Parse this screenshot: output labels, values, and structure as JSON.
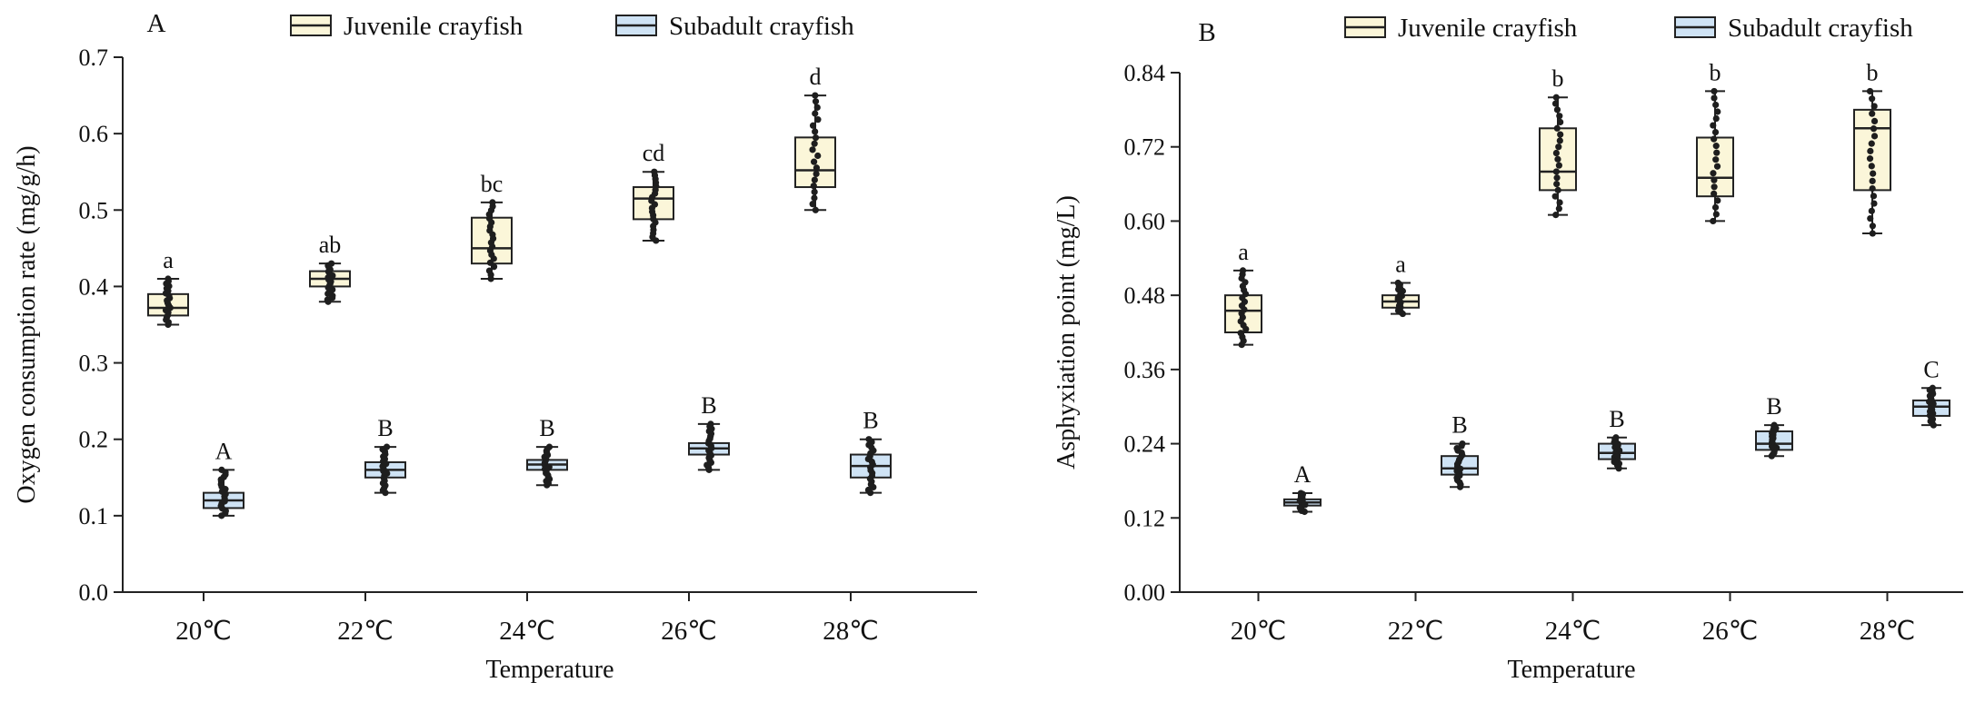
{
  "chart_data": [
    {
      "type": "box",
      "panel_label": "A",
      "xlabel": "Temperature",
      "ylabel": "Oxygen consumption rate (mg/g/h)",
      "ylim": [
        0,
        0.7
      ],
      "yticks": [
        0.0,
        0.1,
        0.2,
        0.3,
        0.4,
        0.5,
        0.6,
        0.7
      ],
      "ytick_labels": [
        "0.0",
        "0.1",
        "0.2",
        "0.3",
        "0.4",
        "0.5",
        "0.6",
        "0.7"
      ],
      "categories": [
        "20℃",
        "22℃",
        "24℃",
        "26℃",
        "28℃"
      ],
      "legend": [
        "Juvenile crayfish",
        "Subadult crayfish"
      ],
      "series": [
        {
          "name": "Juvenile crayfish",
          "color": "#fbf6d9",
          "boxes": [
            {
              "min": 0.35,
              "q1": 0.362,
              "median": 0.372,
              "q3": 0.39,
              "max": 0.41,
              "label": "a"
            },
            {
              "min": 0.38,
              "q1": 0.4,
              "median": 0.41,
              "q3": 0.42,
              "max": 0.43,
              "label": "ab"
            },
            {
              "min": 0.41,
              "q1": 0.43,
              "median": 0.45,
              "q3": 0.49,
              "max": 0.51,
              "label": "bc"
            },
            {
              "min": 0.46,
              "q1": 0.488,
              "median": 0.515,
              "q3": 0.53,
              "max": 0.55,
              "label": "cd"
            },
            {
              "min": 0.5,
              "q1": 0.53,
              "median": 0.552,
              "q3": 0.595,
              "max": 0.65,
              "label": "d"
            }
          ]
        },
        {
          "name": "Subadult crayfish",
          "color": "#cfe3f5",
          "boxes": [
            {
              "min": 0.1,
              "q1": 0.11,
              "median": 0.12,
              "q3": 0.13,
              "max": 0.16,
              "label": "A"
            },
            {
              "min": 0.13,
              "q1": 0.15,
              "median": 0.16,
              "q3": 0.17,
              "max": 0.19,
              "label": "B"
            },
            {
              "min": 0.14,
              "q1": 0.16,
              "median": 0.167,
              "q3": 0.173,
              "max": 0.19,
              "label": "B"
            },
            {
              "min": 0.16,
              "q1": 0.18,
              "median": 0.188,
              "q3": 0.195,
              "max": 0.22,
              "label": "B"
            },
            {
              "min": 0.13,
              "q1": 0.15,
              "median": 0.165,
              "q3": 0.18,
              "max": 0.2,
              "label": "B"
            }
          ]
        }
      ]
    },
    {
      "type": "box",
      "panel_label": "B",
      "xlabel": "Temperature",
      "ylabel": "Asphyxiation point (mg/L)",
      "ylim": [
        0,
        0.84
      ],
      "yticks": [
        0.0,
        0.12,
        0.24,
        0.36,
        0.48,
        0.6,
        0.72,
        0.84
      ],
      "ytick_labels": [
        "0.00",
        "0.12",
        "0.24",
        "0.36",
        "0.48",
        "0.60",
        "0.72",
        "0.84"
      ],
      "categories": [
        "20℃",
        "22℃",
        "24℃",
        "26℃",
        "28℃"
      ],
      "legend": [
        "Juvenile crayfish",
        "Subadult crayfish"
      ],
      "series": [
        {
          "name": "Juvenile crayfish",
          "color": "#fbf6d9",
          "boxes": [
            {
              "min": 0.4,
              "q1": 0.42,
              "median": 0.455,
              "q3": 0.48,
              "max": 0.52,
              "label": "a"
            },
            {
              "min": 0.45,
              "q1": 0.46,
              "median": 0.47,
              "q3": 0.48,
              "max": 0.5,
              "label": "a"
            },
            {
              "min": 0.61,
              "q1": 0.65,
              "median": 0.68,
              "q3": 0.75,
              "max": 0.8,
              "label": "b"
            },
            {
              "min": 0.6,
              "q1": 0.64,
              "median": 0.67,
              "q3": 0.735,
              "max": 0.81,
              "label": "b"
            },
            {
              "min": 0.58,
              "q1": 0.65,
              "median": 0.75,
              "q3": 0.78,
              "max": 0.81,
              "label": "b"
            }
          ]
        },
        {
          "name": "Subadult crayfish",
          "color": "#cfe3f5",
          "boxes": [
            {
              "min": 0.13,
              "q1": 0.14,
              "median": 0.145,
              "q3": 0.15,
              "max": 0.16,
              "label": "A"
            },
            {
              "min": 0.17,
              "q1": 0.19,
              "median": 0.2,
              "q3": 0.22,
              "max": 0.24,
              "label": "B"
            },
            {
              "min": 0.2,
              "q1": 0.215,
              "median": 0.225,
              "q3": 0.24,
              "max": 0.25,
              "label": "B"
            },
            {
              "min": 0.22,
              "q1": 0.23,
              "median": 0.24,
              "q3": 0.26,
              "max": 0.27,
              "label": "B"
            },
            {
              "min": 0.27,
              "q1": 0.285,
              "median": 0.3,
              "q3": 0.31,
              "max": 0.33,
              "label": "C"
            }
          ]
        }
      ]
    }
  ]
}
